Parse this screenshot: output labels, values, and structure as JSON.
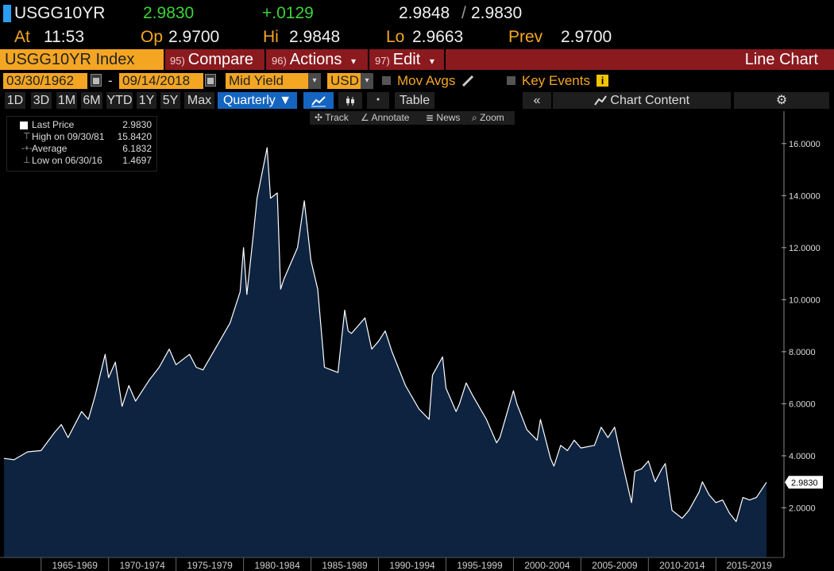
{
  "quote": {
    "ticker": "USGG10YR",
    "last": "2.9830",
    "change": "+.0129",
    "bid_ask": "2.9848",
    "bid_ask_sep": "/",
    "bid_ask2": "2.9830",
    "at_label": "At",
    "at_time": "11:53",
    "op_label": "Op",
    "op_value": "2.9700",
    "hi_label": "Hi",
    "hi_value": "2.9848",
    "lo_label": "Lo",
    "lo_value": "2.9663",
    "prev_label": "Prev",
    "prev_value": "2.9700"
  },
  "function_bar": {
    "security": "USGG10YR Index",
    "compare_num": "95)",
    "compare": "Compare",
    "actions_num": "96)",
    "actions": "Actions",
    "edit_num": "97)",
    "edit": "Edit",
    "dropdown_glyph": "▾",
    "chart_type": "Line Chart"
  },
  "settings": {
    "start_date": "03/30/1962",
    "dash": "-",
    "end_date": "09/14/2018",
    "field": "Mid Yield",
    "currency": "USD",
    "mov_avgs": "Mov Avgs",
    "key_events": "Key Events",
    "info_glyph": "i",
    "dropdown_glyph": "▾"
  },
  "toolbar": {
    "periods": [
      "1D",
      "3D",
      "1M",
      "6M",
      "YTD",
      "1Y",
      "5Y",
      "Max"
    ],
    "frequency": "Quarterly ▼",
    "table": "Table",
    "collapse": "«",
    "chart_content": "Chart Content",
    "gear": "⚙"
  },
  "chart_tools": {
    "track": "Track",
    "annotate": "Annotate",
    "news": "News",
    "zoom": "Zoom"
  },
  "legend": [
    {
      "label": "Last Price",
      "value": "2.9830"
    },
    {
      "label": "High on 09/30/81",
      "value": "15.8420"
    },
    {
      "label": "Average",
      "value": "6.1832"
    },
    {
      "label": "Low on 06/30/16",
      "value": "1.4697"
    }
  ],
  "last_value_tag": "2.9830",
  "colors": {
    "accent_orange": "#f4a623",
    "bar_red": "#8b1a1f",
    "up_green": "#3ad33a",
    "area_fill": "#0d2340",
    "line": "#ffffff",
    "selected_blue": "#1565c0"
  },
  "chart_data": {
    "type": "area",
    "title": "",
    "xlabel": "",
    "ylabel": "",
    "ylim": [
      0,
      17
    ],
    "y_ticks": [
      "2.0000",
      "4.0000",
      "6.0000",
      "8.0000",
      "10.0000",
      "12.0000",
      "14.0000",
      "16.0000"
    ],
    "x_ticks": [
      "1965-1969",
      "1970-1974",
      "1975-1979",
      "1980-1984",
      "1985-1989",
      "1990-1994",
      "1995-1999",
      "2000-2004",
      "2005-2009",
      "2010-2014",
      "2015-2019"
    ],
    "grid": false,
    "series": [
      {
        "x": [
          1962.25,
          1963.0,
          1964.0,
          1965.0,
          1966.0,
          1966.5,
          1967.0,
          1968.0,
          1968.5,
          1969.0,
          1969.75,
          1970.0,
          1970.5,
          1971.0,
          1971.5,
          1972.0,
          1973.0,
          1973.75,
          1974.5,
          1975.0,
          1976.0,
          1976.5,
          1977.0,
          1978.0,
          1979.0,
          1979.75,
          1980.0,
          1980.25,
          1980.75,
          1981.0,
          1981.75,
          1982.0,
          1982.5,
          1982.75,
          1983.0,
          1984.0,
          1984.5,
          1985.0,
          1985.5,
          1986.0,
          1986.5,
          1987.0,
          1987.5,
          1987.75,
          1988.0,
          1989.0,
          1989.5,
          1990.0,
          1990.5,
          1991.0,
          1992.0,
          1993.0,
          1993.75,
          1994.0,
          1994.75,
          1995.0,
          1995.75,
          1996.0,
          1996.5,
          1997.0,
          1998.0,
          1998.75,
          1999.0,
          2000.0,
          2000.25,
          2001.0,
          2001.75,
          2002.0,
          2002.75,
          2003.0,
          2003.5,
          2004.0,
          2004.5,
          2005.0,
          2006.0,
          2006.5,
          2007.0,
          2007.5,
          2008.0,
          2008.75,
          2009.0,
          2009.5,
          2010.0,
          2010.5,
          2011.0,
          2011.25,
          2011.75,
          2012.0,
          2012.5,
          2013.0,
          2013.75,
          2014.0,
          2014.5,
          2015.0,
          2015.5,
          2016.0,
          2016.5,
          2017.0,
          2017.5,
          2018.0,
          2018.75
        ],
        "y": [
          3.9,
          3.85,
          4.15,
          4.2,
          4.9,
          5.2,
          4.7,
          5.7,
          5.4,
          6.3,
          7.9,
          7.0,
          7.6,
          5.9,
          6.7,
          6.1,
          6.9,
          7.4,
          8.1,
          7.5,
          7.9,
          7.4,
          7.3,
          8.2,
          9.1,
          10.3,
          12.0,
          10.2,
          12.6,
          13.9,
          15.84,
          13.9,
          14.1,
          10.4,
          10.8,
          12.0,
          13.8,
          11.5,
          10.4,
          7.4,
          7.3,
          7.2,
          9.6,
          8.8,
          8.7,
          9.3,
          8.1,
          8.4,
          8.8,
          8.0,
          6.7,
          5.8,
          5.4,
          7.1,
          7.8,
          6.6,
          5.7,
          6.0,
          6.8,
          6.3,
          5.4,
          4.5,
          4.7,
          6.5,
          6.0,
          5.0,
          4.6,
          5.4,
          3.9,
          3.6,
          4.4,
          4.2,
          4.6,
          4.3,
          4.4,
          5.1,
          4.7,
          5.1,
          3.9,
          2.2,
          3.4,
          3.5,
          3.8,
          3.0,
          3.5,
          3.7,
          1.9,
          1.8,
          1.6,
          1.9,
          2.6,
          3.0,
          2.5,
          2.2,
          2.3,
          1.8,
          1.4697,
          2.4,
          2.3,
          2.4,
          2.983
        ]
      }
    ]
  }
}
